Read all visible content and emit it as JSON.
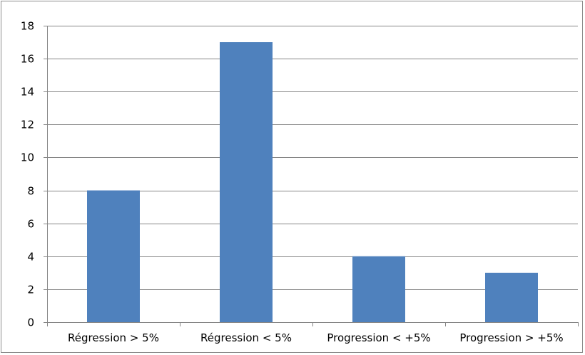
{
  "chart_data": {
    "type": "bar",
    "categories": [
      "Régression > 5%",
      "Régression < 5%",
      "Progression < +5%",
      "Progression > +5%"
    ],
    "values": [
      8,
      17,
      4,
      3
    ],
    "title": "",
    "xlabel": "",
    "ylabel": "",
    "ylim": [
      0,
      18
    ],
    "yticks": [
      0,
      2,
      4,
      6,
      8,
      10,
      12,
      14,
      16,
      18
    ],
    "grid": true,
    "legend": "none",
    "bar_color": "#4f81bd",
    "grid_color": "#868686"
  }
}
